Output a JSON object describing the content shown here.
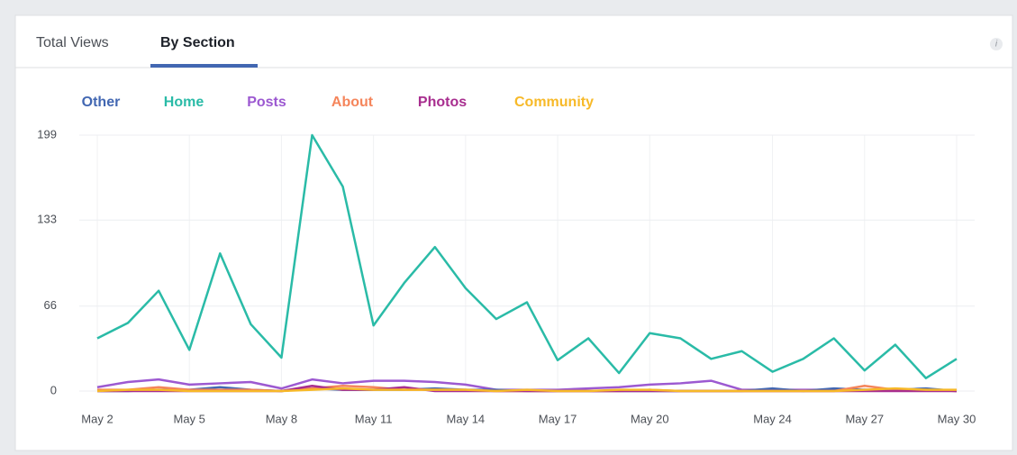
{
  "tabs": [
    "Total Views",
    "By Section"
  ],
  "info_icon": "i",
  "chart_data": {
    "type": "line",
    "categories": [
      "May 2",
      null,
      null,
      "May 5",
      null,
      null,
      "May 8",
      null,
      null,
      "May 11",
      null,
      null,
      "May 14",
      null,
      null,
      "May 17",
      null,
      null,
      "May 20",
      null,
      null,
      null,
      "May 24",
      null,
      null,
      "May 27",
      null,
      null,
      "May 30"
    ],
    "ylim": [
      0,
      199
    ],
    "yticks": [
      0,
      66,
      133,
      199
    ],
    "grid": true,
    "legend": "top",
    "series": [
      {
        "name": "Other",
        "color": "#4267b2",
        "values": [
          0,
          0,
          1,
          1,
          3,
          1,
          0,
          2,
          1,
          1,
          1,
          2,
          1,
          1,
          0,
          0,
          0,
          0,
          0,
          0,
          0,
          0,
          2,
          0,
          2,
          1,
          1,
          2,
          0
        ]
      },
      {
        "name": "Home",
        "color": "#2abba7",
        "values": [
          41,
          53,
          78,
          32,
          107,
          52,
          26,
          199,
          159,
          51,
          84,
          112,
          80,
          56,
          69,
          24,
          41,
          14,
          45,
          41,
          25,
          31,
          15,
          25,
          41,
          16,
          36,
          10,
          25
        ]
      },
      {
        "name": "Posts",
        "color": "#9c59d1",
        "values": [
          3,
          7,
          9,
          5,
          6,
          7,
          2,
          9,
          6,
          8,
          8,
          7,
          5,
          1,
          1,
          1,
          2,
          3,
          5,
          6,
          8,
          1,
          1,
          1,
          1,
          1,
          1,
          1,
          0
        ]
      },
      {
        "name": "About",
        "color": "#f5855b",
        "values": [
          1,
          1,
          3,
          1,
          1,
          1,
          0,
          2,
          4,
          3,
          1,
          1,
          1,
          0,
          0,
          0,
          0,
          0,
          1,
          0,
          0,
          0,
          0,
          0,
          0,
          4,
          1,
          1,
          0
        ]
      },
      {
        "name": "Photos",
        "color": "#a82e8f",
        "values": [
          0,
          0,
          0,
          0,
          0,
          0,
          0,
          4,
          1,
          1,
          3,
          0,
          0,
          0,
          0,
          0,
          0,
          0,
          0,
          0,
          0,
          0,
          0,
          0,
          0,
          0,
          0,
          0,
          0
        ]
      },
      {
        "name": "Community",
        "color": "#f7b928",
        "values": [
          0,
          1,
          1,
          0,
          0,
          0,
          0,
          1,
          2,
          1,
          1,
          1,
          1,
          0,
          1,
          0,
          0,
          1,
          1,
          0,
          0,
          0,
          0,
          0,
          0,
          1,
          2,
          1,
          1
        ]
      }
    ]
  }
}
